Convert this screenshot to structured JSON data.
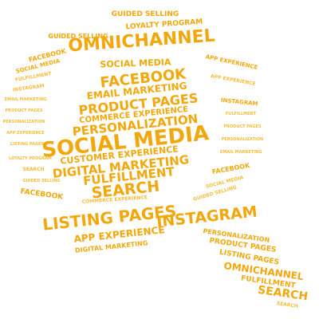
{
  "colors": {
    "word_fill": "#f2a80c",
    "word_fill_light": "#f6bd3c",
    "background": "#ffffff"
  },
  "words": [
    "GUIDED SELLING",
    "LOYALTY PROGRAM",
    "OMNICHANNEL",
    "APP EXPERIENCE",
    "FACEBOOK",
    "SOCIAL MEDIA",
    "FULFILLMENT",
    "INSTAGRAM",
    "EMAIL MARKETING",
    "PRODUCT PAGES",
    "COMMERCE EXPERIENCE",
    "PERSONALIZATION",
    "CUSTOMER EXPERIENCE",
    "DIGITAL MARKETING",
    "SEARCH",
    "LISTING PAGES"
  ]
}
